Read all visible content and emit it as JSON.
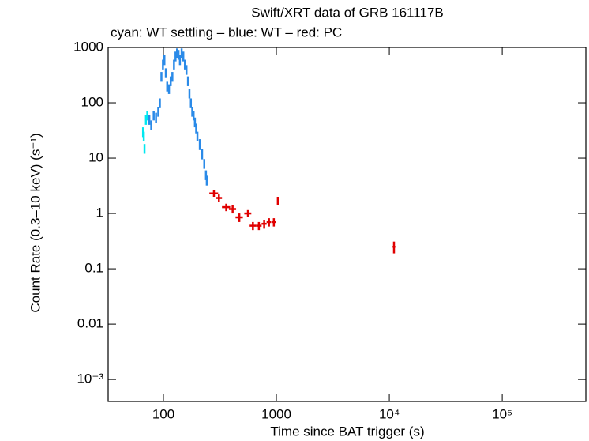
{
  "chart_data": {
    "type": "scatter",
    "title": "Swift/XRT data of GRB 161117B",
    "subtitle": "cyan: WT settling – blue: WT – red: PC",
    "x_label": "Time since BAT trigger (s)",
    "y_label": "Count Rate (0.3–10 keV) (s⁻¹)",
    "xscale": "log",
    "yscale": "log",
    "xlim": [
      32.4,
      550000
    ],
    "ylim": [
      0.0004,
      1000
    ],
    "xticks": [
      100,
      1000,
      {
        "value": 10000,
        "label": "10⁴"
      },
      {
        "value": 100000,
        "label": "10⁵"
      }
    ],
    "yticks": [
      1000,
      100,
      10,
      1,
      0.1,
      0.01,
      {
        "value": 0.001,
        "label": "10⁻³"
      }
    ],
    "series": [
      {
        "name": "WT settling",
        "color": "#00e8f0",
        "x": [
          66,
          67,
          68,
          70,
          72
        ],
        "values": [
          30,
          25,
          15,
          50,
          60
        ],
        "yerr": [
          6,
          5,
          3,
          10,
          12
        ]
      },
      {
        "name": "WT",
        "color": "#2a8ae8",
        "x": [
          75,
          78,
          82,
          86,
          90,
          93,
          96,
          99,
          102,
          105,
          108,
          112,
          116,
          120,
          124,
          128,
          132,
          136,
          140,
          145,
          150,
          155,
          160,
          165,
          170,
          175,
          180,
          185,
          190,
          195,
          200,
          210,
          220,
          230,
          238,
          242
        ],
        "values": [
          50,
          40,
          60,
          55,
          70,
          100,
          300,
          500,
          600,
          350,
          200,
          180,
          250,
          300,
          500,
          700,
          800,
          750,
          600,
          800,
          700,
          500,
          400,
          250,
          150,
          100,
          70,
          60,
          45,
          35,
          25,
          18,
          12,
          8,
          5,
          4
        ],
        "yerr": [
          10,
          8,
          12,
          11,
          14,
          20,
          60,
          100,
          120,
          70,
          40,
          36,
          50,
          60,
          100,
          140,
          160,
          150,
          120,
          160,
          140,
          100,
          80,
          50,
          30,
          20,
          14,
          12,
          9,
          7,
          5,
          4,
          2.5,
          1.6,
          1,
          0.8
        ]
      },
      {
        "name": "PC",
        "color": "#e00000",
        "x": [
          280,
          310,
          360,
          410,
          470,
          560,
          620,
          700,
          780,
          860,
          950,
          1030,
          11000
        ],
        "xerr": [
          25,
          20,
          30,
          30,
          35,
          40,
          40,
          40,
          40,
          40,
          40,
          15,
          300
        ],
        "values": [
          2.3,
          1.9,
          1.3,
          1.2,
          0.85,
          1.0,
          0.6,
          0.6,
          0.65,
          0.7,
          0.7,
          1.7,
          0.25
        ],
        "yerr": [
          0.3,
          0.3,
          0.2,
          0.2,
          0.15,
          0.15,
          0.1,
          0.1,
          0.12,
          0.12,
          0.12,
          0.3,
          0.06
        ]
      }
    ]
  }
}
